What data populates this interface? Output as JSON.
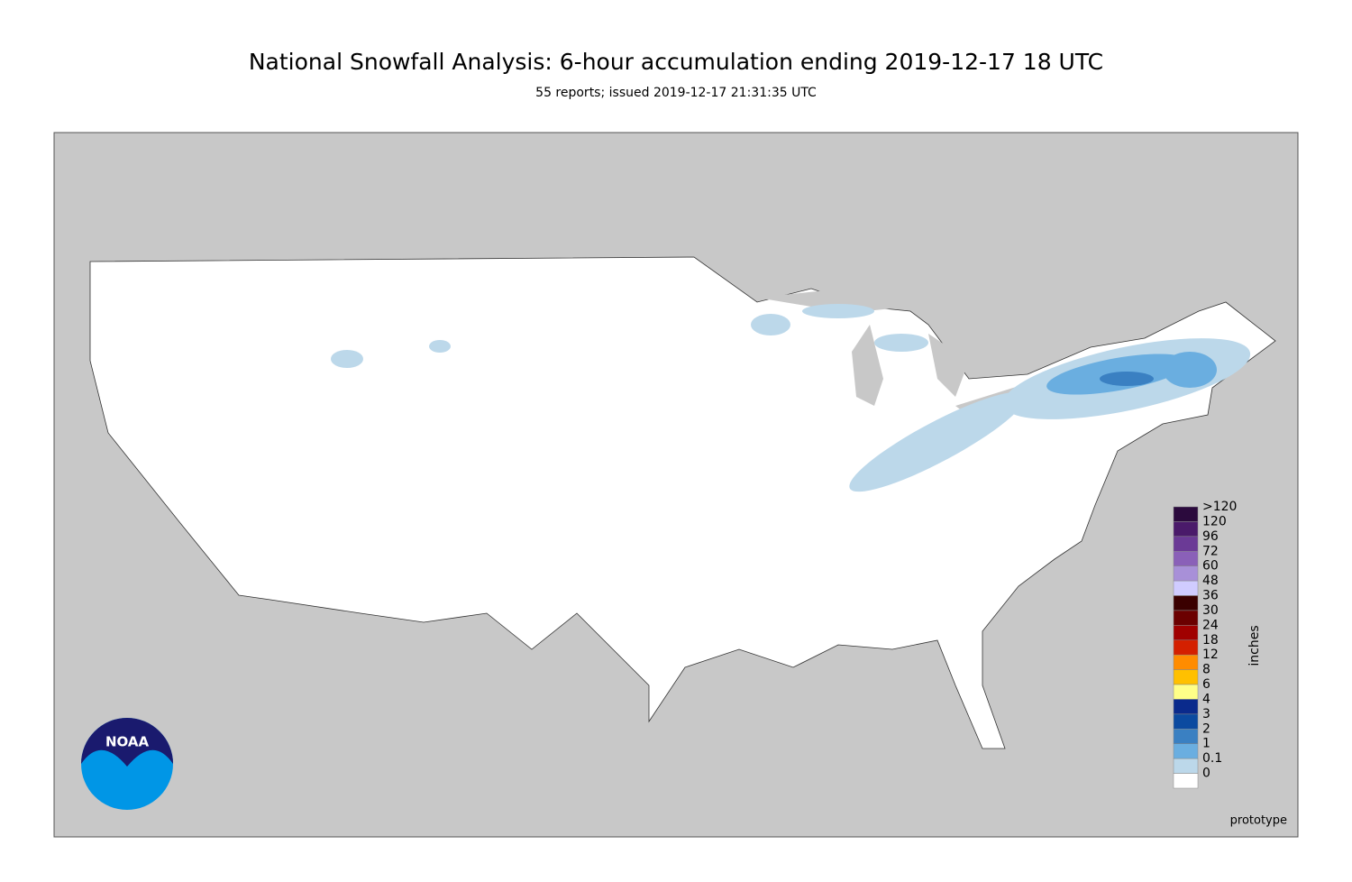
{
  "header": {
    "title": "National Snowfall Analysis: 6-hour accumulation ending 2019-12-17 18 UTC",
    "subtitle": "55 reports; issued 2019-12-17 21:31:35 UTC"
  },
  "legend": {
    "unit": "inches",
    "entries": [
      {
        "label": ">120",
        "color": "#2b0a3d"
      },
      {
        "label": "120",
        "color": "#4a1a6a"
      },
      {
        "label": "96",
        "color": "#6b3a96"
      },
      {
        "label": "72",
        "color": "#8a60b8"
      },
      {
        "label": "60",
        "color": "#a890d8"
      },
      {
        "label": "48",
        "color": "#d0ccff"
      },
      {
        "label": "36",
        "color": "#3a0000"
      },
      {
        "label": "30",
        "color": "#6b0000"
      },
      {
        "label": "24",
        "color": "#a00000"
      },
      {
        "label": "18",
        "color": "#d42000"
      },
      {
        "label": "12",
        "color": "#ff8c00"
      },
      {
        "label": "8",
        "color": "#ffc000"
      },
      {
        "label": "6",
        "color": "#ffff88"
      },
      {
        "label": "4",
        "color": "#0a2a8c"
      },
      {
        "label": "3",
        "color": "#0b4aa0"
      },
      {
        "label": "2",
        "color": "#3a80c2"
      },
      {
        "label": "1",
        "color": "#6aaee0"
      },
      {
        "label": "0.1",
        "color": "#bcd8ea"
      },
      {
        "label": "0",
        "color": "#ffffff"
      }
    ]
  },
  "footer": {
    "note": "prototype"
  },
  "logo": {
    "text": "NOAA"
  }
}
